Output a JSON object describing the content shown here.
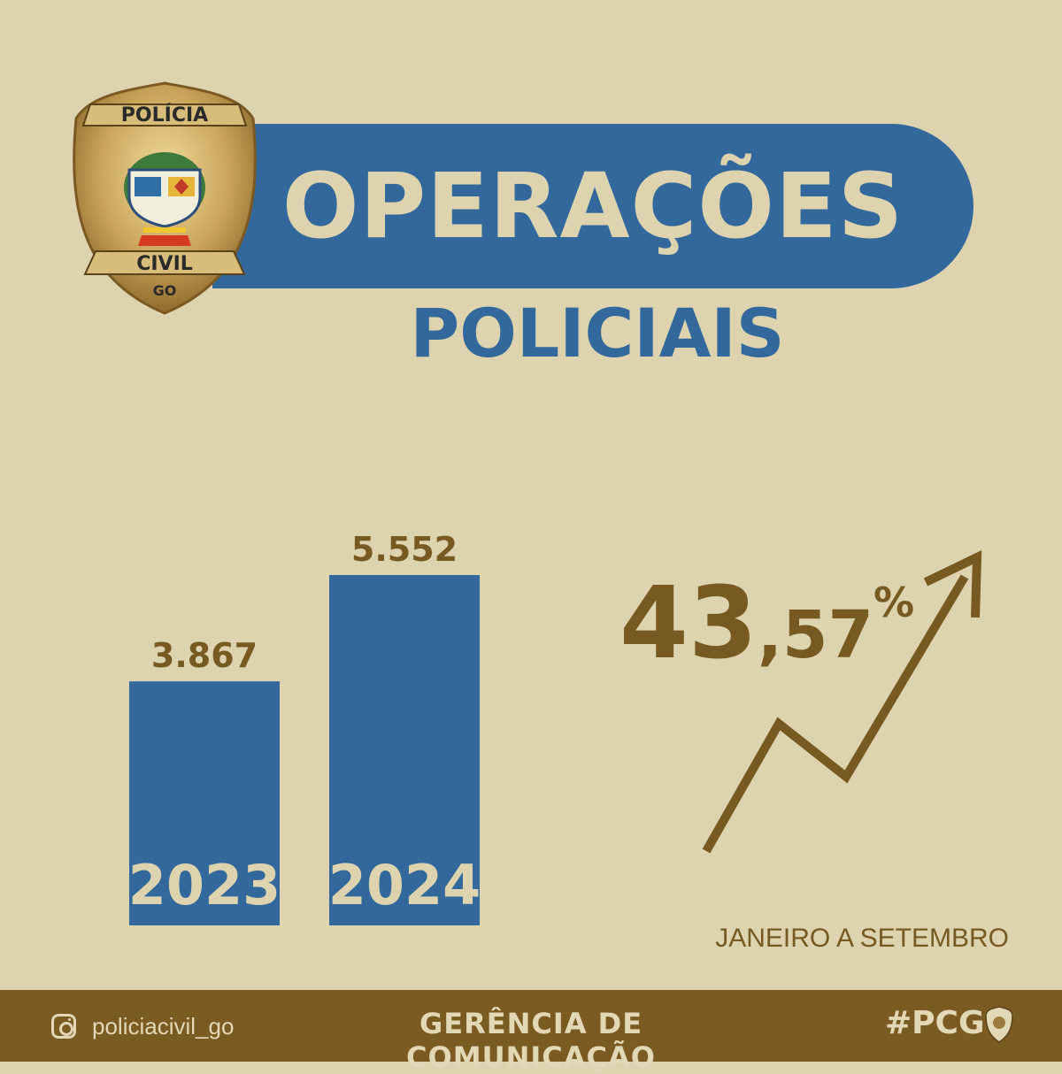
{
  "header": {
    "title": "OPERAÇÕES",
    "subtitle": "POLICIAIS"
  },
  "badge": {
    "top_text": "POLÍCIA",
    "bottom_text": "CIVIL",
    "state": "GO"
  },
  "chart_data": {
    "type": "bar",
    "categories": [
      "2023",
      "2024"
    ],
    "values": [
      3867,
      5552
    ],
    "value_labels": [
      "3.867",
      "5.552"
    ],
    "ylim": [
      0,
      5552
    ],
    "bar_color": "#33689C",
    "label_color": "#765A22",
    "category_color": "#DDD3AE"
  },
  "growth": {
    "whole": "43",
    "decimal": ",57",
    "symbol": "%",
    "period": "JANEIRO A SETEMBRO"
  },
  "colors": {
    "background": "#DDD3AE",
    "blue": "#33689C",
    "brown": "#765A22",
    "footer": "#7A5C22"
  },
  "footer": {
    "instagram": "policiacivil_go",
    "department": "GERÊNCIA DE COMUNICAÇÃO",
    "hashtag": "#PCGO"
  }
}
